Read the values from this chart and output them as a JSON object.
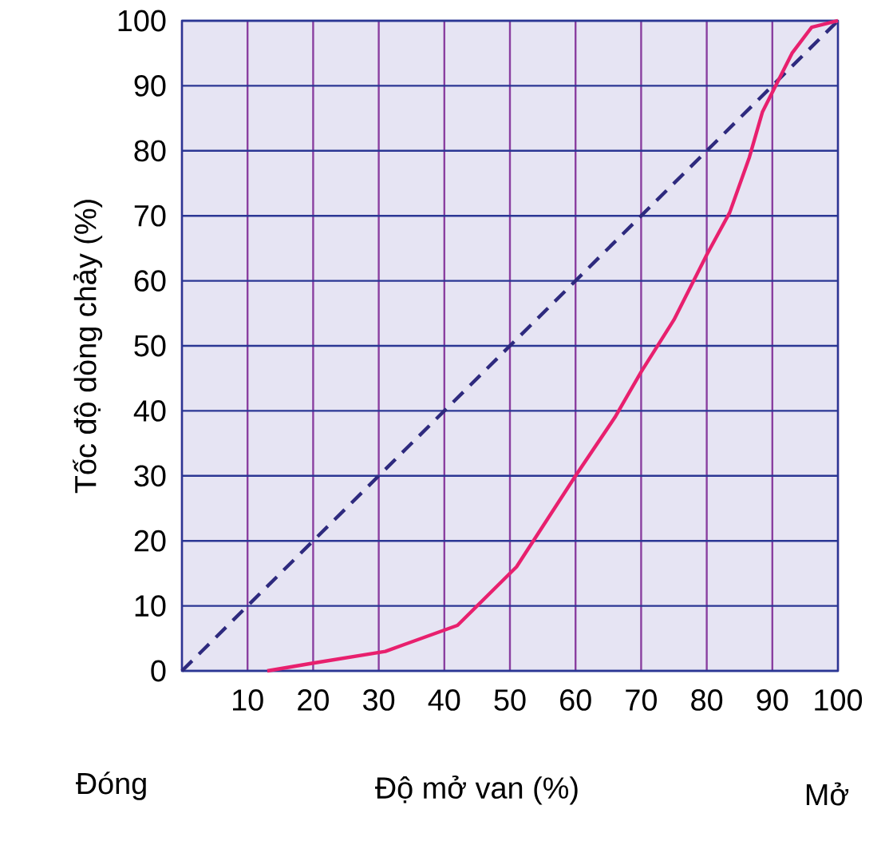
{
  "chart_data": {
    "type": "line",
    "xlabel": "Độ mở van (%)",
    "ylabel": "Tốc độ dòng chảy (%)",
    "annotations": [
      "Đóng",
      "Mở"
    ],
    "xlim": [
      0,
      100
    ],
    "ylim": [
      0,
      100
    ],
    "xticks": [
      {
        "value": 0,
        "label": null
      },
      10,
      20,
      30,
      40,
      50,
      60,
      70,
      80,
      90,
      100
    ],
    "yticks": [
      0,
      10,
      20,
      30,
      40,
      50,
      60,
      70,
      80,
      90,
      100
    ],
    "grid": true,
    "series": [
      {
        "x": [
          0,
          100
        ],
        "values": [
          0,
          100
        ],
        "color": "#2e2a7e",
        "line_style": "dashed"
      },
      {
        "x": [
          13,
          20,
          31,
          42,
          51,
          60,
          66,
          70,
          75,
          80,
          83.5,
          86.5,
          88.5,
          90,
          93,
          96,
          100
        ],
        "values": [
          0,
          1.2,
          3,
          7,
          16,
          30,
          39,
          46,
          54,
          64,
          70.5,
          79,
          86,
          89,
          95,
          99,
          100
        ],
        "color": "#e8206e",
        "line_style": "solid"
      }
    ]
  }
}
